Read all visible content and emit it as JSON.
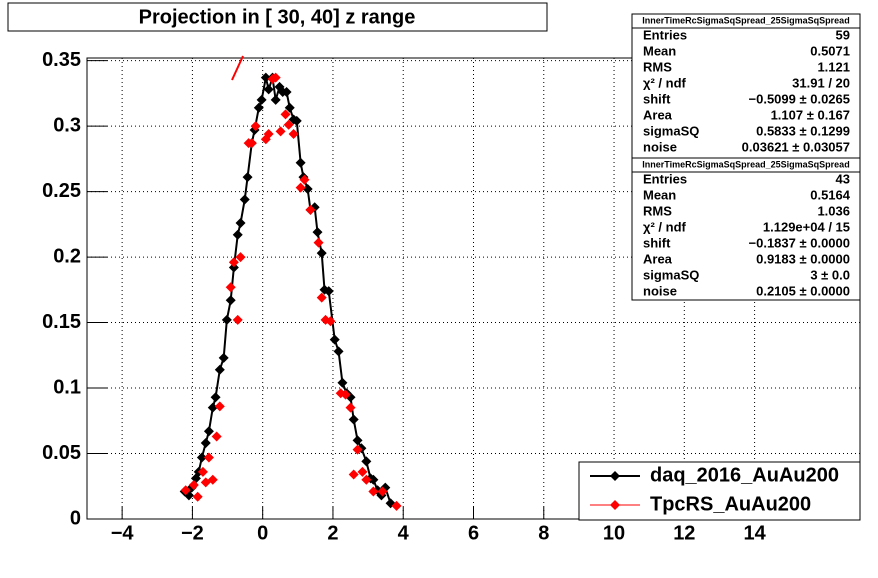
{
  "chart_data": {
    "type": "scatter",
    "title": "Projection in [  30,  40] z range",
    "xlim": [
      -5,
      17
    ],
    "ylim": [
      0,
      0.352
    ],
    "xticks": [
      {
        "value": -4,
        "label": "−4"
      },
      {
        "value": -2,
        "label": "−2"
      },
      0,
      2,
      4,
      6,
      8,
      10,
      12,
      14
    ],
    "yticks": [
      0,
      0.05,
      0.1,
      0.15,
      0.2,
      0.25,
      0.3,
      0.35
    ],
    "grid": true,
    "legend": "lower right",
    "series": [
      {
        "name": "daq_2016_AuAu200",
        "color": "#000000",
        "x": [
          -2.22,
          -2.1,
          -2.02,
          -1.9,
          -1.82,
          -1.73,
          -1.62,
          -1.53,
          -1.42,
          -1.34,
          -1.22,
          -1.11,
          -1.02,
          -0.91,
          -0.82,
          -0.71,
          -0.63,
          -0.51,
          -0.43,
          -0.31,
          -0.23,
          -0.11,
          -0.03,
          0.09,
          0.17,
          0.28,
          0.37,
          0.48,
          0.57,
          0.68,
          0.77,
          0.88,
          0.97,
          1.08,
          1.16,
          1.28,
          1.36,
          1.48,
          1.56,
          1.68,
          1.76,
          1.88,
          2.05,
          2.16,
          2.27,
          2.39,
          2.5,
          2.59,
          2.7,
          2.81,
          2.95,
          3.07,
          3.15,
          3.27,
          3.38,
          3.49,
          3.64
        ],
        "values": [
          0.021,
          0.018,
          0.024,
          0.031,
          0.036,
          0.047,
          0.058,
          0.067,
          0.085,
          0.093,
          0.114,
          0.123,
          0.152,
          0.167,
          0.192,
          0.217,
          0.226,
          0.244,
          0.261,
          0.287,
          0.297,
          0.314,
          0.32,
          0.337,
          0.328,
          0.337,
          0.32,
          0.33,
          0.326,
          0.326,
          0.314,
          0.305,
          0.304,
          0.272,
          0.261,
          0.252,
          0.236,
          0.238,
          0.219,
          0.203,
          0.175,
          0.174,
          0.137,
          0.128,
          0.104,
          0.096,
          0.093,
          0.076,
          0.06,
          0.054,
          0.044,
          0.031,
          0.03,
          0.022,
          0.018,
          0.024,
          0.012
        ]
      },
      {
        "name": "TpcRS_AuAu200",
        "color": "#ff0000",
        "x": [
          -2.19,
          -1.96,
          -1.85,
          -1.7,
          -1.62,
          -1.53,
          -1.42,
          -1.31,
          -1.22,
          -0.91,
          -0.82,
          -0.71,
          -0.63,
          -0.4,
          -0.31,
          -0.2,
          0.09,
          0.17,
          0.28,
          0.37,
          0.51,
          0.65,
          0.74,
          0.88,
          1.08,
          1.19,
          1.36,
          1.59,
          1.68,
          1.79,
          1.93,
          2.22,
          2.36,
          2.5,
          2.59,
          2.7,
          2.84,
          2.95,
          3.15,
          3.41,
          3.81
        ],
        "values": [
          0.022,
          0.026,
          0.017,
          0.036,
          0.028,
          0.047,
          0.03,
          0.063,
          0.086,
          0.177,
          0.196,
          0.152,
          0.2,
          0.287,
          0.287,
          0.3,
          0.29,
          0.294,
          0.336,
          0.337,
          0.296,
          0.309,
          0.301,
          0.294,
          0.253,
          0.259,
          0.236,
          0.211,
          0.169,
          0.152,
          0.151,
          0.096,
          0.095,
          0.085,
          0.034,
          0.053,
          0.036,
          0.03,
          0.021,
          0.021,
          0.01
        ]
      }
    ],
    "stats": [
      {
        "title": "InnerTimeRcSigmaSqSpread_25SigmaSqSpread",
        "rows": [
          [
            "Entries",
            "59"
          ],
          [
            "Mean",
            "0.5071"
          ],
          [
            "RMS",
            "1.121"
          ],
          [
            "χ² / ndf",
            "31.91 / 20"
          ],
          [
            "shift",
            "−0.5099 ± 0.0265"
          ],
          [
            "Area",
            "1.107 ± 0.167"
          ],
          [
            "sigmaSQ",
            "0.5833 ± 0.1299"
          ],
          [
            "noise",
            "0.03621 ± 0.03057"
          ]
        ]
      },
      {
        "title": "InnerTimeRcSigmaSqSpread_25SigmaSqSpread",
        "rows": [
          [
            "Entries",
            "43"
          ],
          [
            "Mean",
            "0.5164"
          ],
          [
            "RMS",
            "1.036"
          ],
          [
            "χ² / ndf",
            "1.129e+04 / 15"
          ],
          [
            "shift",
            "−0.1837 ± 0.0000"
          ],
          [
            "Area",
            "0.9183 ± 0.0000"
          ],
          [
            "sigmaSQ",
            "3 ± 0.0"
          ],
          [
            "noise",
            "0.2105 ± 0.0000"
          ]
        ]
      }
    ]
  }
}
